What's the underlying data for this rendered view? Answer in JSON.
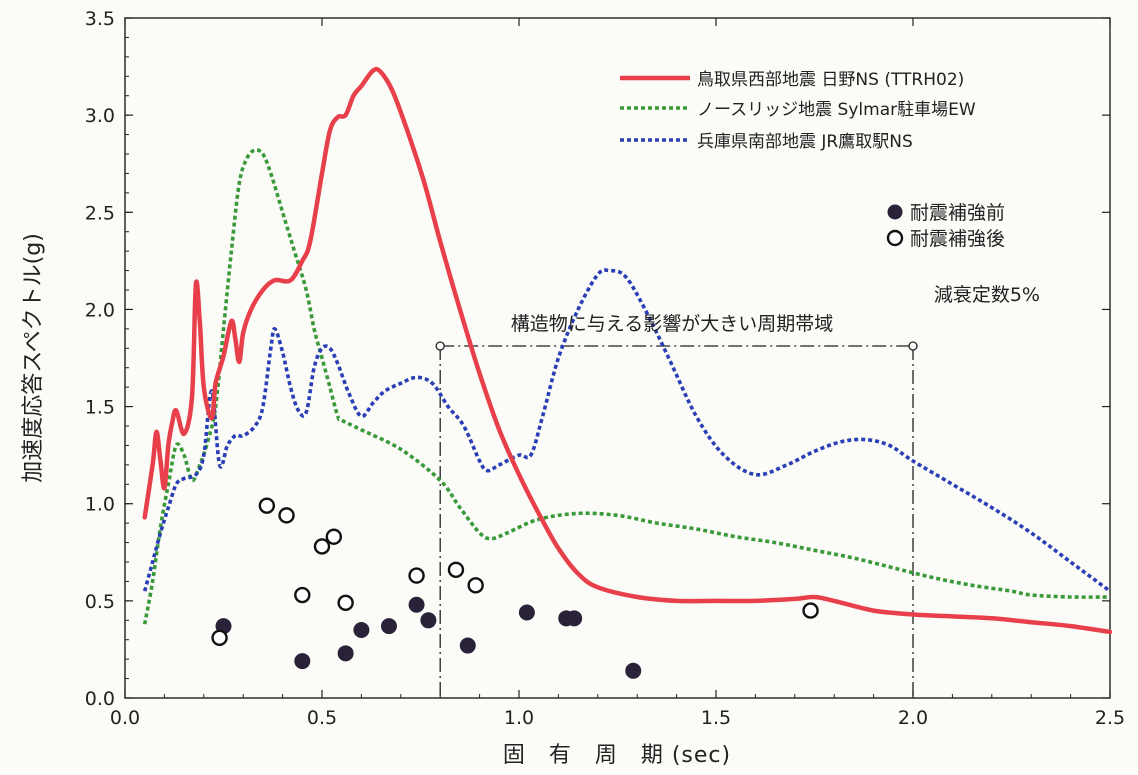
{
  "chart_data": {
    "type": "line",
    "xlabel": "固　有　周　期 (sec)",
    "ylabel": "加速度応答スペクトル(g)",
    "xlim": [
      0.0,
      2.5
    ],
    "ylim": [
      0.0,
      3.5
    ],
    "xticks": [
      "0.0",
      "0.5",
      "1.0",
      "1.5",
      "2.0",
      "2.5"
    ],
    "yticks": [
      "0.0",
      "0.5",
      "1.0",
      "1.5",
      "2.0",
      "2.5",
      "3.0",
      "3.5"
    ],
    "grid": false,
    "legend_position": "top-right",
    "annotations": {
      "band_label": "構造物に与える影響が大きい周期帯域",
      "band_range": [
        0.8,
        2.0
      ],
      "damping": "減衰定数5%"
    },
    "series": [
      {
        "name": "鳥取県西部地震 日野NS (TTRH02)",
        "color": "#e8404b",
        "style": "solid",
        "points": [
          [
            0.05,
            0.93
          ],
          [
            0.07,
            1.2
          ],
          [
            0.08,
            1.37
          ],
          [
            0.09,
            1.22
          ],
          [
            0.1,
            1.08
          ],
          [
            0.11,
            1.3
          ],
          [
            0.12,
            1.42
          ],
          [
            0.13,
            1.48
          ],
          [
            0.15,
            1.36
          ],
          [
            0.17,
            1.55
          ],
          [
            0.18,
            2.13
          ],
          [
            0.19,
            1.93
          ],
          [
            0.2,
            1.6
          ],
          [
            0.22,
            1.44
          ],
          [
            0.23,
            1.62
          ],
          [
            0.25,
            1.76
          ],
          [
            0.27,
            1.94
          ],
          [
            0.28,
            1.85
          ],
          [
            0.29,
            1.73
          ],
          [
            0.3,
            1.88
          ],
          [
            0.32,
            2.0
          ],
          [
            0.35,
            2.1
          ],
          [
            0.38,
            2.15
          ],
          [
            0.42,
            2.15
          ],
          [
            0.45,
            2.25
          ],
          [
            0.47,
            2.35
          ],
          [
            0.5,
            2.7
          ],
          [
            0.52,
            2.92
          ],
          [
            0.54,
            2.99
          ],
          [
            0.56,
            3.0
          ],
          [
            0.58,
            3.1
          ],
          [
            0.6,
            3.15
          ],
          [
            0.63,
            3.23
          ],
          [
            0.65,
            3.22
          ],
          [
            0.68,
            3.12
          ],
          [
            0.72,
            2.9
          ],
          [
            0.76,
            2.65
          ],
          [
            0.8,
            2.35
          ],
          [
            0.85,
            2.0
          ],
          [
            0.9,
            1.67
          ],
          [
            0.95,
            1.38
          ],
          [
            1.0,
            1.15
          ],
          [
            1.05,
            0.95
          ],
          [
            1.1,
            0.77
          ],
          [
            1.15,
            0.64
          ],
          [
            1.2,
            0.57
          ],
          [
            1.3,
            0.52
          ],
          [
            1.4,
            0.5
          ],
          [
            1.5,
            0.5
          ],
          [
            1.6,
            0.5
          ],
          [
            1.7,
            0.51
          ],
          [
            1.75,
            0.52
          ],
          [
            1.8,
            0.5
          ],
          [
            1.9,
            0.45
          ],
          [
            2.0,
            0.43
          ],
          [
            2.1,
            0.42
          ],
          [
            2.2,
            0.41
          ],
          [
            2.3,
            0.39
          ],
          [
            2.4,
            0.37
          ],
          [
            2.5,
            0.34
          ]
        ]
      },
      {
        "name": "ノースリッジ地震 Sylmar駐車場EW",
        "color": "#3a9a3a",
        "style": "dotted",
        "points": [
          [
            0.05,
            0.38
          ],
          [
            0.07,
            0.6
          ],
          [
            0.09,
            0.88
          ],
          [
            0.11,
            1.1
          ],
          [
            0.13,
            1.3
          ],
          [
            0.15,
            1.25
          ],
          [
            0.17,
            1.12
          ],
          [
            0.19,
            1.2
          ],
          [
            0.21,
            1.32
          ],
          [
            0.23,
            1.5
          ],
          [
            0.25,
            1.9
          ],
          [
            0.27,
            2.3
          ],
          [
            0.29,
            2.65
          ],
          [
            0.31,
            2.78
          ],
          [
            0.33,
            2.82
          ],
          [
            0.35,
            2.8
          ],
          [
            0.37,
            2.7
          ],
          [
            0.4,
            2.5
          ],
          [
            0.43,
            2.3
          ],
          [
            0.46,
            2.1
          ],
          [
            0.48,
            1.9
          ],
          [
            0.5,
            1.75
          ],
          [
            0.52,
            1.6
          ],
          [
            0.54,
            1.45
          ],
          [
            0.55,
            1.43
          ],
          [
            0.6,
            1.38
          ],
          [
            0.7,
            1.28
          ],
          [
            0.8,
            1.12
          ],
          [
            0.85,
            0.98
          ],
          [
            0.9,
            0.85
          ],
          [
            0.93,
            0.82
          ],
          [
            0.97,
            0.85
          ],
          [
            1.05,
            0.92
          ],
          [
            1.15,
            0.95
          ],
          [
            1.25,
            0.94
          ],
          [
            1.35,
            0.9
          ],
          [
            1.45,
            0.87
          ],
          [
            1.55,
            0.83
          ],
          [
            1.65,
            0.8
          ],
          [
            1.75,
            0.76
          ],
          [
            1.85,
            0.72
          ],
          [
            1.95,
            0.67
          ],
          [
            2.05,
            0.62
          ],
          [
            2.15,
            0.58
          ],
          [
            2.25,
            0.55
          ],
          [
            2.3,
            0.53
          ],
          [
            2.4,
            0.52
          ],
          [
            2.5,
            0.52
          ]
        ]
      },
      {
        "name": "兵庫県南部地震 JR鷹取駅NS",
        "color": "#2a3fb5",
        "style": "dotted",
        "points": [
          [
            0.05,
            0.55
          ],
          [
            0.07,
            0.7
          ],
          [
            0.09,
            0.85
          ],
          [
            0.11,
            0.98
          ],
          [
            0.13,
            1.1
          ],
          [
            0.15,
            1.13
          ],
          [
            0.18,
            1.15
          ],
          [
            0.2,
            1.25
          ],
          [
            0.22,
            1.58
          ],
          [
            0.24,
            1.2
          ],
          [
            0.26,
            1.3
          ],
          [
            0.28,
            1.35
          ],
          [
            0.3,
            1.35
          ],
          [
            0.33,
            1.4
          ],
          [
            0.35,
            1.5
          ],
          [
            0.37,
            1.8
          ],
          [
            0.38,
            1.9
          ],
          [
            0.4,
            1.78
          ],
          [
            0.42,
            1.6
          ],
          [
            0.44,
            1.48
          ],
          [
            0.46,
            1.47
          ],
          [
            0.48,
            1.7
          ],
          [
            0.5,
            1.8
          ],
          [
            0.52,
            1.8
          ],
          [
            0.54,
            1.72
          ],
          [
            0.57,
            1.56
          ],
          [
            0.6,
            1.45
          ],
          [
            0.63,
            1.52
          ],
          [
            0.66,
            1.58
          ],
          [
            0.7,
            1.62
          ],
          [
            0.74,
            1.65
          ],
          [
            0.78,
            1.62
          ],
          [
            0.82,
            1.5
          ],
          [
            0.86,
            1.4
          ],
          [
            0.9,
            1.22
          ],
          [
            0.92,
            1.17
          ],
          [
            0.95,
            1.2
          ],
          [
            1.0,
            1.25
          ],
          [
            1.03,
            1.25
          ],
          [
            1.06,
            1.45
          ],
          [
            1.1,
            1.75
          ],
          [
            1.15,
            2.0
          ],
          [
            1.2,
            2.18
          ],
          [
            1.23,
            2.2
          ],
          [
            1.27,
            2.17
          ],
          [
            1.32,
            2.0
          ],
          [
            1.38,
            1.75
          ],
          [
            1.45,
            1.45
          ],
          [
            1.52,
            1.25
          ],
          [
            1.6,
            1.15
          ],
          [
            1.68,
            1.2
          ],
          [
            1.75,
            1.27
          ],
          [
            1.82,
            1.32
          ],
          [
            1.88,
            1.33
          ],
          [
            1.94,
            1.3
          ],
          [
            2.0,
            1.22
          ],
          [
            2.1,
            1.1
          ],
          [
            2.2,
            0.98
          ],
          [
            2.3,
            0.85
          ],
          [
            2.4,
            0.7
          ],
          [
            2.5,
            0.55
          ]
        ]
      }
    ],
    "scatter": [
      {
        "name": "耐震補強前",
        "marker": "filled",
        "points": [
          [
            0.25,
            0.37
          ],
          [
            0.45,
            0.19
          ],
          [
            0.56,
            0.23
          ],
          [
            0.6,
            0.35
          ],
          [
            0.67,
            0.37
          ],
          [
            0.74,
            0.48
          ],
          [
            0.77,
            0.4
          ],
          [
            0.87,
            0.27
          ],
          [
            1.02,
            0.44
          ],
          [
            1.12,
            0.41
          ],
          [
            1.14,
            0.41
          ],
          [
            1.29,
            0.14
          ]
        ]
      },
      {
        "name": "耐震補強後",
        "marker": "open",
        "points": [
          [
            0.24,
            0.31
          ],
          [
            0.36,
            0.99
          ],
          [
            0.41,
            0.94
          ],
          [
            0.45,
            0.53
          ],
          [
            0.5,
            0.78
          ],
          [
            0.53,
            0.83
          ],
          [
            0.56,
            0.49
          ],
          [
            0.74,
            0.63
          ],
          [
            0.84,
            0.66
          ],
          [
            0.89,
            0.58
          ],
          [
            1.74,
            0.45
          ]
        ]
      }
    ]
  }
}
